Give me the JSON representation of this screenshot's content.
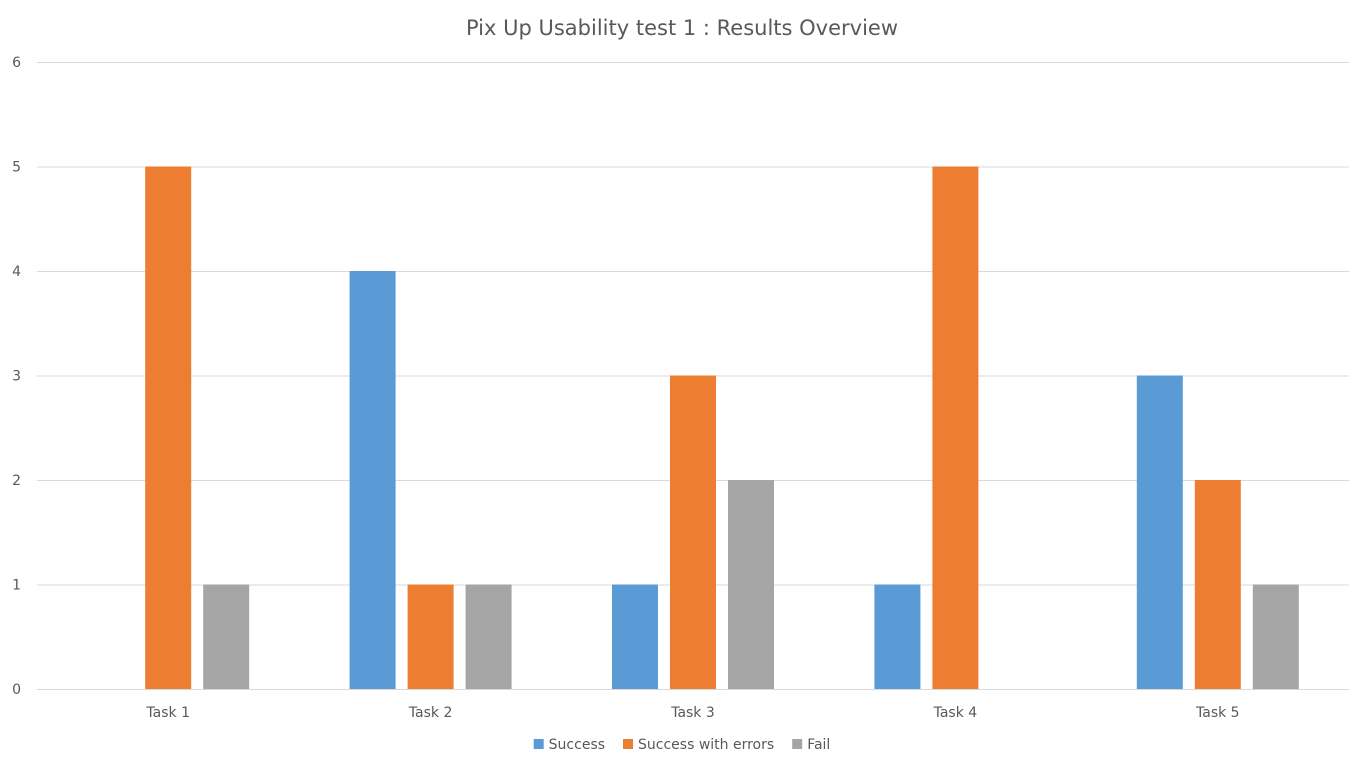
{
  "chart_data": {
    "type": "bar",
    "title": "Pix Up Usability test 1 : Results Overview",
    "xlabel": "",
    "ylabel": "",
    "categories": [
      "Task 1",
      "Task 2",
      "Task 3",
      "Task 4",
      "Task 5"
    ],
    "series": [
      {
        "name": "Success",
        "color": "#5b9bd5",
        "values": [
          0,
          4,
          1,
          1,
          3
        ]
      },
      {
        "name": "Success with errors",
        "color": "#ed7d31",
        "values": [
          5,
          1,
          3,
          5,
          2
        ]
      },
      {
        "name": "Fail",
        "color": "#a5a5a5",
        "values": [
          1,
          1,
          2,
          0,
          1
        ]
      }
    ],
    "ylim": [
      0,
      6
    ],
    "yticks": [
      "0",
      "1",
      "2",
      "3",
      "4",
      "5",
      "6"
    ],
    "grid": true,
    "legend": "bottom"
  }
}
